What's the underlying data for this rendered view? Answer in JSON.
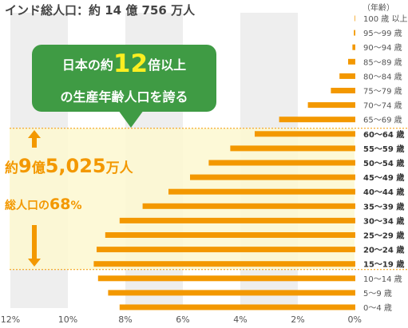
{
  "header": {
    "title": "インド総人口：約 14 億 756 万人"
  },
  "callout": {
    "line1_pre": "日本の約",
    "line1_num": "12",
    "line1_post": "倍以上",
    "line2": "の生産年齢人口を誇る"
  },
  "highlight": {
    "stat1_pre": "約",
    "stat1_num": "9",
    "stat1_mid": "億",
    "stat1_num2": "5,025",
    "stat1_post": "万人",
    "stat2_pre": "総人口の",
    "stat2_num": "68",
    "stat2_post": "%"
  },
  "colors": {
    "bar": "#f39800",
    "highlight_fill": "#fdf8d2",
    "highlight_border": "#f39800",
    "band": "#eeeeee",
    "callout": "#3f9b44",
    "callout_accent": "#fcee21",
    "text": "#444444"
  },
  "chart_data": {
    "type": "bar",
    "orientation": "horizontal",
    "direction": "right-to-left",
    "unit_label": "（年齢）",
    "categories": [
      "100 歳 以上",
      "95〜99 歳",
      "90〜94 歳",
      "85〜89 歳",
      "80〜84 歳",
      "75〜79 歳",
      "70〜74 歳",
      "65〜69 歳",
      "60〜64 歳",
      "55〜59 歳",
      "50〜54 歳",
      "45〜49 歳",
      "40〜44 歳",
      "35〜39 歳",
      "30〜34 歳",
      "25〜29 歳",
      "20〜24 歳",
      "15〜19 歳",
      "10〜14 歳",
      "5〜9 歳",
      "0〜4 歳"
    ],
    "bold_categories": [
      "60〜64 歳",
      "55〜59 歳",
      "50〜54 歳",
      "45〜49 歳",
      "40〜44 歳",
      "35〜39 歳",
      "30〜34 歳",
      "25〜29 歳",
      "20〜24 歳",
      "15〜19 歳"
    ],
    "values": [
      0.02,
      0.05,
      0.1,
      0.25,
      0.55,
      0.85,
      1.65,
      2.65,
      3.5,
      4.35,
      5.1,
      5.75,
      6.5,
      7.4,
      8.2,
      8.7,
      9.0,
      9.1,
      8.95,
      8.6,
      8.2
    ],
    "xlim": [
      0,
      12
    ],
    "x_ticks": [
      12,
      10,
      8,
      6,
      4,
      2,
      0
    ],
    "x_tick_labels": [
      "12%",
      "10%",
      "8%",
      "6%",
      "4%",
      "2%",
      "0%"
    ],
    "highlight_range": [
      "60〜64 歳",
      "15〜19 歳"
    ]
  }
}
